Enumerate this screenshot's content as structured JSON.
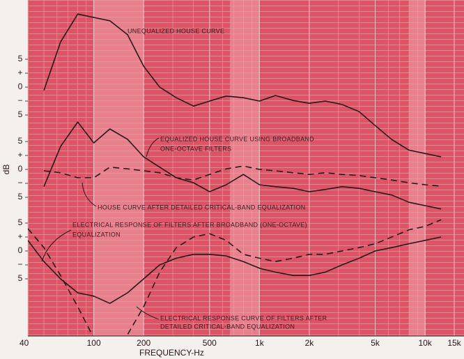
{
  "chart_data": [
    {
      "type": "line",
      "log_x": true,
      "xlim": [
        40,
        15000
      ],
      "xticks": [
        40,
        100,
        200,
        500,
        {
          "value": 1000,
          "label": "1k"
        },
        {
          "value": 2000,
          "label": "2k"
        },
        {
          "value": 5000,
          "label": "5k"
        },
        {
          "value": 10000,
          "label": "10k"
        },
        {
          "value": 15000,
          "label": "15k"
        }
      ],
      "x_label": "FREQUENCY-Hz",
      "ylim": [
        -44.625,
        15.625
      ],
      "yticks": [
        5,
        {
          "value": 2.5,
          "label": "+"
        },
        0,
        {
          "value": -2.5,
          "label": "−"
        },
        {
          "value": -5,
          "label": "5"
        }
      ],
      "annotations": [
        "UNEQUALIZED HOUSE CURVE"
      ],
      "x": [
        50,
        63,
        80,
        100,
        125,
        160,
        200,
        250,
        315,
        400,
        500,
        630,
        800,
        1000,
        1250,
        1600,
        2000,
        2500,
        3150,
        4000,
        5000,
        6300,
        8000,
        10000,
        12500
      ],
      "series": [
        {
          "color": "#2a1418",
          "dash": false,
          "values": [
            -0.6,
            8.1,
            13.1,
            12.5,
            11.9,
            9.4,
            3.75,
            0,
            -1.9,
            -3.4,
            -2.5,
            -1.6,
            -1.9,
            -2.5,
            -1.5,
            -2.4,
            -2.9,
            -2.5,
            -3.1,
            -4.4,
            -6.9,
            -9.4,
            -11.3,
            -11.9,
            -12.5
          ]
        }
      ]
    },
    {
      "type": "line",
      "log_x": true,
      "xlim": [
        40,
        15000
      ],
      "y_label": "dB",
      "ylim": [
        -29.875,
        30.375
      ],
      "yticks": [
        5,
        {
          "value": 2.5,
          "label": "+"
        },
        0,
        {
          "value": -2.5,
          "label": "−"
        },
        {
          "value": -5,
          "label": "5"
        }
      ],
      "annotations": [
        "EQUALIZED HOUSE CURVE USING BROADBAND",
        "ONE-OCTAVE FILTERS",
        "HOUSE CURVE AFTER DETAILED CRITICAL-BAND EQUALIZATION"
      ],
      "x": [
        50,
        63,
        80,
        100,
        125,
        160,
        200,
        250,
        315,
        400,
        500,
        630,
        800,
        1000,
        1250,
        1600,
        2000,
        2500,
        3150,
        4000,
        5000,
        6300,
        8000,
        10000,
        12500
      ],
      "series": [
        {
          "color": "#2a1418",
          "dash": false,
          "values": [
            -3.1,
            4.1,
            8.5,
            4.75,
            7.25,
            5.4,
            2.25,
            0.4,
            -1.5,
            -2.4,
            -4,
            -2.75,
            -0.9,
            -2.75,
            -3.1,
            -3.4,
            -4,
            -3.6,
            -3.1,
            -3.4,
            -4,
            -4.6,
            -5.9,
            -6.5,
            -7.1
          ]
        },
        {
          "color": "#2a1418",
          "dash": true,
          "values": [
            -0.25,
            -0.6,
            -1.5,
            -1.5,
            0.4,
            0.1,
            -0.25,
            -0.6,
            -1.5,
            -1.9,
            -0.9,
            0.1,
            0.6,
            0,
            -0.25,
            -0.6,
            -0.9,
            -0.6,
            -0.9,
            -1.1,
            -1.5,
            -1.9,
            -2.4,
            -2.75,
            -3
          ]
        }
      ]
    },
    {
      "type": "line",
      "log_x": true,
      "xlim": [
        40,
        15000
      ],
      "ylim": [
        -15.25,
        45
      ],
      "yticks": [
        5,
        {
          "value": 2.5,
          "label": "+"
        },
        0,
        {
          "value": -2.5,
          "label": "−"
        },
        {
          "value": -5,
          "label": "5"
        }
      ],
      "annotations": [
        "ELECTRICAL RESPONSE OF FILTERS AFTER BROADBAND (ONE-OCTAVE)",
        "EQUALIZATION",
        "ELECTRICAL RESPONSE CURVE OF FILTERS AFTER",
        "DETAILED CRITICAL-BAND EQUALIZATION"
      ],
      "x": [
        40,
        50,
        63,
        80,
        100,
        125,
        160,
        200,
        250,
        315,
        400,
        500,
        630,
        800,
        1000,
        1250,
        1600,
        2000,
        2500,
        3150,
        4000,
        5000,
        6300,
        8000,
        10000,
        12500
      ],
      "series": [
        {
          "color": "#2a1418",
          "dash": false,
          "values": [
            1.9,
            -1.9,
            -5,
            -7.5,
            -8.1,
            -9.4,
            -7.5,
            -5,
            -2.5,
            -1.3,
            -0.6,
            -0.6,
            -0.9,
            -1.9,
            -3.1,
            -3.8,
            -4.4,
            -4.4,
            -3.8,
            -2.5,
            -1.3,
            0,
            0.6,
            1.3,
            1.9,
            2.5
          ]
        },
        {
          "color": "#2a1418",
          "dash": true,
          "values": [
            4,
            0.6,
            -4.4,
            -10,
            -15.6,
            -17,
            -15,
            -10,
            -3.8,
            0.6,
            2.5,
            3.1,
            1.9,
            -0.6,
            -1.3,
            -1.9,
            -1.3,
            -0.6,
            -0.6,
            0,
            0.6,
            1.3,
            2.5,
            3.8,
            4.4,
            5.6
          ]
        }
      ]
    }
  ]
}
